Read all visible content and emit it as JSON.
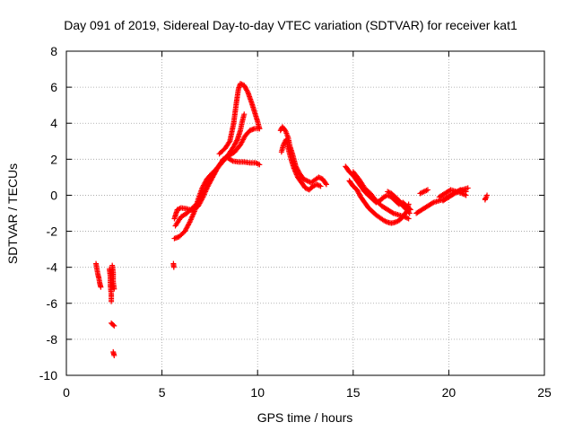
{
  "chart_data": {
    "type": "scatter",
    "title": "Day 091 of 2019, Sidereal Day-to-day VTEC variation (SDTVAR) for receiver kat1",
    "xlabel": "GPS time / hours",
    "ylabel": "SDTVAR / TECUs",
    "xlim": [
      0,
      25
    ],
    "ylim": [
      -10,
      8
    ],
    "xticks": [
      "0",
      "5",
      "10",
      "15",
      "20",
      "25"
    ],
    "yticks": [
      "-10",
      "-8",
      "-6",
      "-4",
      "-2",
      "0",
      "2",
      "4",
      "6",
      "8"
    ],
    "grid": true,
    "marker": "+",
    "color": "#ff0000",
    "series": [
      {
        "name": "SDTVAR",
        "segments": [
          [
            [
              1.55,
              -3.8
            ],
            [
              1.6,
              -4.1
            ],
            [
              1.65,
              -4.4
            ],
            [
              1.7,
              -4.6
            ],
            [
              1.75,
              -4.9
            ],
            [
              1.8,
              -5.1
            ]
          ],
          [
            [
              2.25,
              -4.1
            ],
            [
              2.3,
              -4.5
            ],
            [
              2.3,
              -5.0
            ],
            [
              2.35,
              -5.5
            ],
            [
              2.35,
              -5.9
            ]
          ],
          [
            [
              2.4,
              -3.9
            ],
            [
              2.45,
              -4.3
            ],
            [
              2.45,
              -4.8
            ],
            [
              2.5,
              -5.2
            ]
          ],
          [
            [
              2.35,
              -7.1
            ],
            [
              2.45,
              -7.2
            ],
            [
              2.5,
              -7.25
            ]
          ],
          [
            [
              2.45,
              -8.7
            ],
            [
              2.5,
              -8.9
            ]
          ],
          [
            [
              5.6,
              -3.8
            ],
            [
              5.62,
              -4.0
            ]
          ],
          [
            [
              5.65,
              -2.4
            ],
            [
              5.9,
              -2.3
            ],
            [
              6.2,
              -2.0
            ],
            [
              6.45,
              -1.5
            ],
            [
              6.7,
              -0.9
            ],
            [
              6.9,
              -0.2
            ],
            [
              7.1,
              0.4
            ],
            [
              7.35,
              0.9
            ],
            [
              7.6,
              1.2
            ],
            [
              7.9,
              1.5
            ],
            [
              8.2,
              1.9
            ],
            [
              8.5,
              2.3
            ],
            [
              8.75,
              2.7
            ],
            [
              8.95,
              3.1
            ],
            [
              9.1,
              3.6
            ],
            [
              9.2,
              4.1
            ],
            [
              9.3,
              4.5
            ]
          ],
          [
            [
              5.65,
              -1.3
            ],
            [
              5.8,
              -0.8
            ],
            [
              6.0,
              -0.7
            ],
            [
              6.3,
              -0.75
            ],
            [
              6.6,
              -0.85
            ],
            [
              6.9,
              -0.6
            ],
            [
              7.15,
              -0.1
            ],
            [
              7.4,
              0.5
            ],
            [
              7.65,
              1.0
            ],
            [
              7.9,
              1.5
            ],
            [
              8.2,
              2.0
            ],
            [
              8.5,
              2.2
            ],
            [
              8.8,
              2.4
            ],
            [
              9.1,
              2.8
            ],
            [
              9.35,
              3.3
            ],
            [
              9.6,
              3.6
            ],
            [
              9.85,
              3.7
            ],
            [
              10.1,
              3.7
            ]
          ],
          [
            [
              5.7,
              -1.7
            ],
            [
              6.0,
              -1.2
            ],
            [
              6.3,
              -1.0
            ],
            [
              6.6,
              -0.7
            ],
            [
              6.9,
              -0.4
            ],
            [
              7.2,
              0.2
            ],
            [
              7.5,
              0.8
            ],
            [
              7.8,
              1.4
            ],
            [
              8.1,
              1.8
            ],
            [
              8.4,
              2.1
            ],
            [
              8.7,
              1.9
            ],
            [
              9.0,
              1.85
            ],
            [
              9.3,
              1.85
            ],
            [
              9.6,
              1.8
            ],
            [
              9.9,
              1.8
            ],
            [
              10.1,
              1.7
            ]
          ],
          [
            [
              8.0,
              2.3
            ],
            [
              8.3,
              2.6
            ],
            [
              8.55,
              3.0
            ],
            [
              8.75,
              4.0
            ],
            [
              8.9,
              5.2
            ],
            [
              9.0,
              5.9
            ],
            [
              9.1,
              6.2
            ],
            [
              9.3,
              6.1
            ],
            [
              9.5,
              5.7
            ],
            [
              9.7,
              5.1
            ],
            [
              9.85,
              4.6
            ],
            [
              10.0,
              4.1
            ],
            [
              10.1,
              3.7
            ]
          ],
          [
            [
              11.2,
              3.6
            ],
            [
              11.3,
              3.8
            ],
            [
              11.45,
              3.6
            ],
            [
              11.6,
              3.2
            ],
            [
              11.7,
              2.7
            ],
            [
              11.85,
              2.2
            ],
            [
              12.0,
              1.6
            ],
            [
              12.2,
              1.2
            ],
            [
              12.4,
              0.9
            ],
            [
              12.6,
              0.8
            ],
            [
              12.8,
              0.7
            ],
            [
              13.0,
              0.85
            ],
            [
              13.2,
              1.0
            ],
            [
              13.4,
              0.9
            ],
            [
              13.6,
              0.6
            ]
          ],
          [
            [
              11.25,
              2.4
            ],
            [
              11.35,
              2.8
            ],
            [
              11.5,
              3.1
            ],
            [
              11.6,
              2.6
            ],
            [
              11.75,
              2.0
            ],
            [
              11.9,
              1.5
            ],
            [
              12.1,
              1.0
            ],
            [
              12.3,
              0.7
            ],
            [
              12.5,
              0.4
            ],
            [
              12.7,
              0.3
            ],
            [
              12.9,
              0.5
            ],
            [
              13.1,
              0.6
            ],
            [
              13.3,
              0.5
            ]
          ],
          [
            [
              14.6,
              1.6
            ],
            [
              14.8,
              1.3
            ],
            [
              15.0,
              1.1
            ],
            [
              15.2,
              0.8
            ],
            [
              15.4,
              0.5
            ],
            [
              15.6,
              0.2
            ],
            [
              15.8,
              0.0
            ],
            [
              16.0,
              -0.2
            ],
            [
              16.2,
              -0.4
            ],
            [
              16.4,
              -0.3
            ],
            [
              16.6,
              -0.1
            ],
            [
              16.8,
              0.0
            ],
            [
              17.0,
              -0.1
            ],
            [
              17.2,
              -0.3
            ],
            [
              17.4,
              -0.5
            ],
            [
              17.6,
              -0.4
            ],
            [
              17.8,
              -0.6
            ],
            [
              18.0,
              -0.8
            ]
          ],
          [
            [
              14.8,
              0.8
            ],
            [
              15.0,
              0.5
            ],
            [
              15.2,
              0.3
            ],
            [
              15.4,
              -0.1
            ],
            [
              15.6,
              -0.4
            ],
            [
              15.8,
              -0.7
            ],
            [
              16.0,
              -0.9
            ],
            [
              16.2,
              -1.1
            ],
            [
              16.4,
              -1.25
            ],
            [
              16.6,
              -1.4
            ],
            [
              16.8,
              -1.5
            ],
            [
              17.0,
              -1.55
            ],
            [
              17.2,
              -1.5
            ],
            [
              17.4,
              -1.4
            ],
            [
              17.6,
              -1.2
            ],
            [
              17.8,
              -0.9
            ],
            [
              17.9,
              -0.5
            ]
          ],
          [
            [
              15.0,
              1.3
            ],
            [
              15.3,
              0.9
            ],
            [
              15.6,
              0.4
            ],
            [
              15.9,
              0.1
            ],
            [
              16.2,
              -0.3
            ],
            [
              16.5,
              -0.6
            ],
            [
              16.8,
              -0.8
            ],
            [
              17.1,
              -1.0
            ],
            [
              17.4,
              -1.1
            ],
            [
              17.7,
              -1.2
            ],
            [
              17.9,
              -1.3
            ]
          ],
          [
            [
              16.8,
              0.2
            ],
            [
              17.0,
              0.1
            ],
            [
              17.2,
              -0.1
            ],
            [
              17.4,
              -0.3
            ],
            [
              17.6,
              -0.6
            ],
            [
              17.8,
              -0.8
            ],
            [
              17.95,
              -1.0
            ]
          ],
          [
            [
              18.3,
              -1.0
            ],
            [
              18.6,
              -0.8
            ],
            [
              18.9,
              -0.6
            ],
            [
              19.2,
              -0.4
            ],
            [
              19.5,
              -0.3
            ],
            [
              19.8,
              -0.2
            ],
            [
              20.1,
              0.0
            ],
            [
              20.4,
              0.2
            ],
            [
              20.7,
              0.3
            ],
            [
              21.0,
              0.4
            ]
          ],
          [
            [
              18.5,
              0.1
            ],
            [
              18.7,
              0.2
            ],
            [
              18.9,
              0.3
            ]
          ],
          [
            [
              19.5,
              -0.1
            ],
            [
              19.8,
              0.1
            ],
            [
              20.1,
              0.3
            ],
            [
              20.4,
              0.2
            ],
            [
              20.7,
              0.1
            ],
            [
              20.9,
              0.0
            ]
          ],
          [
            [
              19.7,
              -0.3
            ],
            [
              20.0,
              -0.1
            ],
            [
              20.3,
              0.1
            ],
            [
              20.6,
              0.3
            ],
            [
              20.9,
              0.2
            ]
          ],
          [
            [
              21.9,
              -0.2
            ],
            [
              21.9,
              -0.25
            ],
            [
              22.0,
              0.0
            ]
          ]
        ]
      }
    ]
  }
}
